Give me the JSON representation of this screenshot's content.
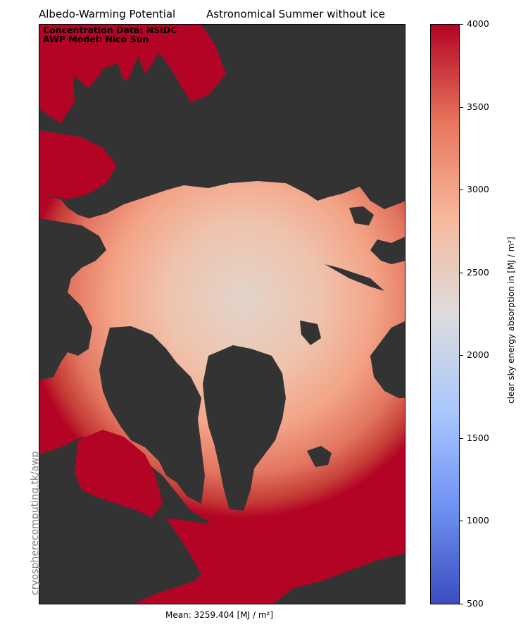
{
  "title_left": "Albedo-Warming Potential",
  "title_right": "Astronomical Summer without ice",
  "credits": [
    "Concentration Data: NSIDC",
    "AWP Model: Nico Sun"
  ],
  "watermark": "cryospherecomputing.tk/awp",
  "mean_label": "Mean: 3259.404 [MJ / m²]",
  "colorbar": {
    "label": "clear sky energy absorption in [MJ / m²]",
    "min": 500,
    "max": 4000,
    "ticks": [
      "500",
      "1000",
      "1500",
      "2000",
      "2500",
      "3000",
      "3500",
      "4000"
    ],
    "colormap": "coolwarm",
    "stops": [
      "#3b4cc0",
      "#6f92f3",
      "#aac7fd",
      "#dddcdc",
      "#f7b89c",
      "#e7745b",
      "#b40426"
    ]
  },
  "colors": {
    "land": "#333333",
    "high_value": "#b40426"
  }
}
